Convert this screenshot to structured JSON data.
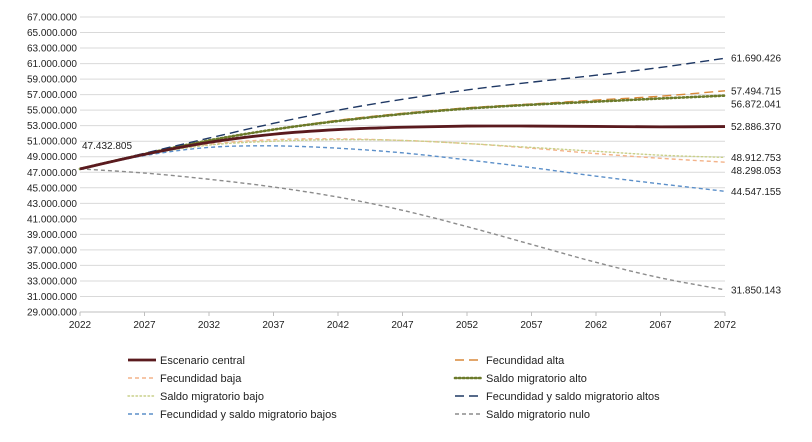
{
  "chart_data": {
    "type": "line",
    "x": [
      2022,
      2027,
      2032,
      2037,
      2042,
      2047,
      2052,
      2057,
      2062,
      2067,
      2072
    ],
    "x_tick_labels": [
      "2022",
      "2027",
      "2032",
      "2037",
      "2042",
      "2047",
      "2052",
      "2057",
      "2062",
      "2067",
      "2072"
    ],
    "ylim": [
      29000000,
      67000000
    ],
    "y_ticks": [
      29000000,
      31000000,
      33000000,
      35000000,
      37000000,
      39000000,
      41000000,
      43000000,
      45000000,
      47000000,
      49000000,
      51000000,
      53000000,
      55000000,
      57000000,
      59000000,
      61000000,
      63000000,
      65000000,
      67000000
    ],
    "y_tick_labels": [
      "29.000.000",
      "31.000.000",
      "33.000.000",
      "35.000.000",
      "37.000.000",
      "39.000.000",
      "41.000.000",
      "43.000.000",
      "45.000.000",
      "47.000.000",
      "49.000.000",
      "51.000.000",
      "53.000.000",
      "55.000.000",
      "57.000.000",
      "59.000.000",
      "61.000.000",
      "63.000.000",
      "65.000.000",
      "67.000.000"
    ],
    "grid": true,
    "start_label": "47.432.805",
    "series": [
      {
        "name": "Escenario central",
        "color": "#5a1a1e",
        "dash": "solid",
        "width": "thick",
        "values": [
          47432805,
          49300000,
          50850000,
          51900000,
          52500000,
          52800000,
          52950000,
          52950000,
          52900000,
          52850000,
          52886370
        ],
        "end_label": "52.886.370"
      },
      {
        "name": "Fecundidad alta",
        "color": "#d9893a",
        "dash": "longdash",
        "width": "normal",
        "values": [
          47432805,
          49350000,
          51100000,
          52500000,
          53700000,
          54600000,
          55300000,
          55800000,
          56300000,
          56800000,
          57494715
        ],
        "end_label": "57.494.715"
      },
      {
        "name": "Fecundidad baja",
        "color": "#f3b38a",
        "dash": "dash",
        "width": "normal",
        "values": [
          47432805,
          49250000,
          50600000,
          51200000,
          51300000,
          51100000,
          50700000,
          50100000,
          49400000,
          48800000,
          48298053
        ],
        "end_label": "48.298.053"
      },
      {
        "name": "Saldo migratorio alto",
        "color": "#6b7a2a",
        "dash": "dot",
        "width": "thick",
        "values": [
          47432805,
          49350000,
          51100000,
          52500000,
          53600000,
          54500000,
          55200000,
          55700000,
          56100000,
          56500000,
          56872041
        ],
        "end_label": "56.872.041"
      },
      {
        "name": "Saldo migratorio bajo",
        "color": "#c9d08a",
        "dash": "dot",
        "width": "normal",
        "values": [
          47432805,
          49250000,
          50500000,
          51000000,
          51200000,
          51100000,
          50700000,
          50200000,
          49700000,
          49200000,
          48912753
        ],
        "end_label": "48.912.753"
      },
      {
        "name": "Fecundidad y saldo migratorio altos",
        "color": "#1f3864",
        "dash": "longdash",
        "width": "normal",
        "values": [
          47432805,
          49450000,
          51400000,
          53300000,
          55000000,
          56400000,
          57600000,
          58600000,
          59500000,
          60500000,
          61690426
        ],
        "end_label": "61.690.426"
      },
      {
        "name": "Fecundidad y saldo migratorio bajos",
        "color": "#5b8fc9",
        "dash": "dash",
        "width": "normal",
        "values": [
          47432805,
          49150000,
          50200000,
          50400000,
          50100000,
          49500000,
          48600000,
          47600000,
          46500000,
          45500000,
          44547155
        ],
        "end_label": "44.547.155"
      },
      {
        "name": "Saldo migratorio nulo",
        "color": "#8c8c8c",
        "dash": "dash",
        "width": "normal",
        "values": [
          47432805,
          46900000,
          46100000,
          45100000,
          43800000,
          42100000,
          40000000,
          37700000,
          35400000,
          33400000,
          31850143
        ],
        "end_label": "31.850.143"
      }
    ]
  }
}
